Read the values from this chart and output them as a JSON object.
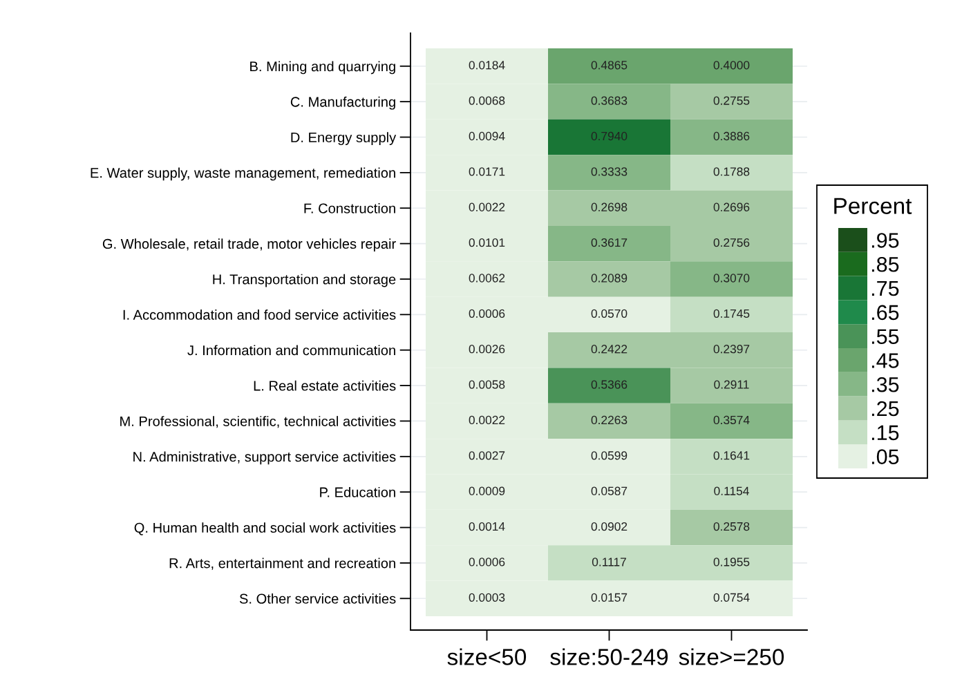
{
  "chart_data": {
    "type": "heatmap",
    "categories": [
      "size<50",
      "size:50-249",
      "size>=250"
    ],
    "y_categories": [
      "B. Mining and quarrying",
      "C. Manufacturing",
      "D. Energy supply",
      "E. Water supply, waste management, remediation",
      "F. Construction",
      "G. Wholesale, retail trade, motor vehicles repair",
      "H. Transportation and storage",
      "I. Accommodation and food service activities",
      "J. Information and communication",
      "L. Real estate activities",
      "M. Professional, scientific, technical activities",
      "N. Administrative, support service activities",
      "P. Education",
      "Q. Human health and social work activities",
      "R. Arts, entertainment and recreation",
      "S. Other service activities"
    ],
    "cells": [
      [
        0.0184,
        0.4865,
        0.4
      ],
      [
        0.0068,
        0.3683,
        0.2755
      ],
      [
        0.0094,
        0.794,
        0.3886
      ],
      [
        0.0171,
        0.3333,
        0.1788
      ],
      [
        0.0022,
        0.2698,
        0.2696
      ],
      [
        0.0101,
        0.3617,
        0.2756
      ],
      [
        0.0062,
        0.2089,
        0.307
      ],
      [
        0.0006,
        0.057,
        0.1745
      ],
      [
        0.0026,
        0.2422,
        0.2397
      ],
      [
        0.0058,
        0.5366,
        0.2911
      ],
      [
        0.0022,
        0.2263,
        0.3574
      ],
      [
        0.0027,
        0.0599,
        0.1641
      ],
      [
        0.0009,
        0.0587,
        0.1154
      ],
      [
        0.0014,
        0.0902,
        0.2578
      ],
      [
        0.0006,
        0.1117,
        0.1955
      ],
      [
        0.0003,
        0.0157,
        0.0754
      ]
    ],
    "cell_labels": [
      [
        "0.0184",
        "0.4865",
        "0.4000"
      ],
      [
        "0.0068",
        "0.3683",
        "0.2755"
      ],
      [
        "0.0094",
        "0.7940",
        "0.3886"
      ],
      [
        "0.0171",
        "0.3333",
        "0.1788"
      ],
      [
        "0.0022",
        "0.2698",
        "0.2696"
      ],
      [
        "0.0101",
        "0.3617",
        "0.2756"
      ],
      [
        "0.0062",
        "0.2089",
        "0.3070"
      ],
      [
        "0.0006",
        "0.0570",
        "0.1745"
      ],
      [
        "0.0026",
        "0.2422",
        "0.2397"
      ],
      [
        "0.0058",
        "0.5366",
        "0.2911"
      ],
      [
        "0.0022",
        "0.2263",
        "0.3574"
      ],
      [
        "0.0027",
        "0.0599",
        "0.1641"
      ],
      [
        "0.0009",
        "0.0587",
        "0.1154"
      ],
      [
        "0.0014",
        "0.0902",
        "0.2578"
      ],
      [
        "0.0006",
        "0.1117",
        "0.1955"
      ],
      [
        "0.0003",
        "0.0157",
        "0.0754"
      ]
    ],
    "clabel": "Percent",
    "clim": [
      0,
      1
    ],
    "colors": [
      "#e5f1e3",
      "#c5dfc4",
      "#a6c9a4",
      "#86b787",
      "#6aa56d",
      "#4a9358",
      "#1f8a4b",
      "#197636",
      "#1a6b1e",
      "#1b4f1b"
    ],
    "cticks": [
      {
        "value": 0.05,
        "label": ".05"
      },
      {
        "value": 0.15,
        "label": ".15"
      },
      {
        "value": 0.25,
        "label": ".25"
      },
      {
        "value": 0.35,
        "label": ".35"
      },
      {
        "value": 0.45,
        "label": ".45"
      },
      {
        "value": 0.55,
        "label": ".55"
      },
      {
        "value": 0.65,
        "label": ".65"
      },
      {
        "value": 0.75,
        "label": ".75"
      },
      {
        "value": 0.85,
        "label": ".85"
      },
      {
        "value": 0.95,
        "label": ".95"
      }
    ],
    "grid": "y"
  }
}
